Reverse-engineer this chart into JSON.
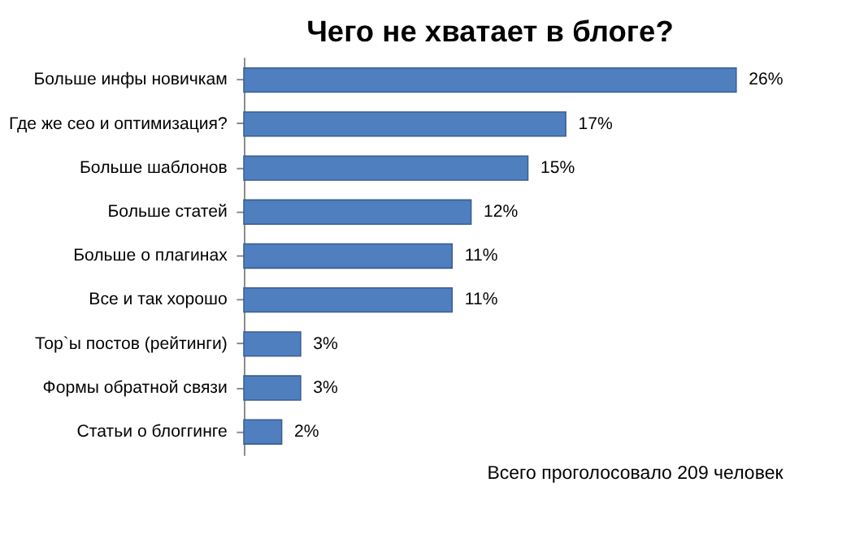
{
  "chart_data": {
    "type": "bar",
    "orientation": "horizontal",
    "title": "Чего не хватает в блоге?",
    "categories": [
      "Больше инфы новичкам",
      "Где же сео и оптимизация?",
      "Больше шаблонов",
      "Больше статей",
      "Больше о плагинах",
      "Все и так хорошо",
      "Тор`ы постов (рейтинги)",
      "Формы обратной связи",
      "Статьи о блоггинге"
    ],
    "values": [
      26,
      17,
      15,
      12,
      11,
      11,
      3,
      3,
      2
    ],
    "value_labels": [
      "26%",
      "17%",
      "15%",
      "12%",
      "11%",
      "11%",
      "3%",
      "3%",
      "2%"
    ],
    "color": "#4f7fbf",
    "annotations": [
      "Всего проголосовало 209 человек"
    ]
  }
}
